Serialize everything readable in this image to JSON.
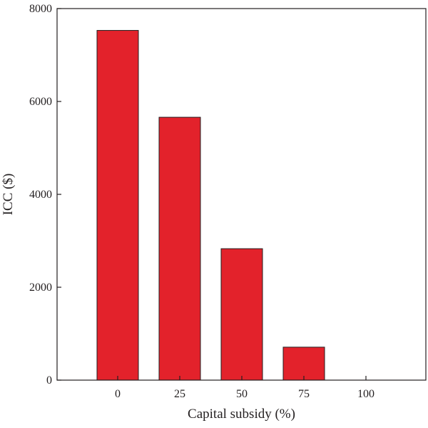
{
  "chart_data": {
    "type": "bar",
    "xlabel": "Capital subsidy (%)",
    "ylabel": "ICC ($)",
    "categories": [
      "0",
      "25",
      "50",
      "75",
      "100"
    ],
    "values": [
      7530,
      5660,
      2830,
      710,
      0
    ],
    "ylim": [
      0,
      8000
    ],
    "yticks": [
      0,
      2000,
      4000,
      6000,
      8000
    ],
    "bar_color": "#e3222b",
    "bar_stroke": "#231f20",
    "axis_color": "#231f20",
    "grid": false
  }
}
